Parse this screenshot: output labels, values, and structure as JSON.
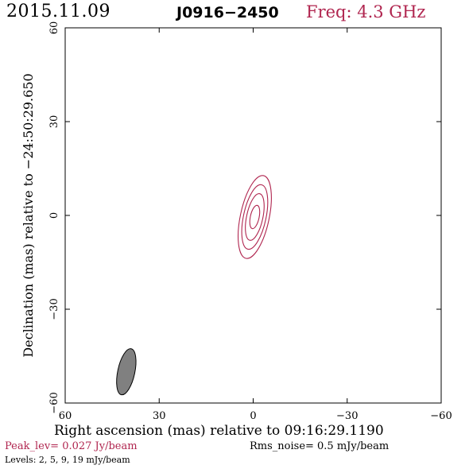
{
  "header": {
    "date": "2015.11.09",
    "source": "J0916−2450",
    "freq": "Freq: 4.3 GHz"
  },
  "footer": {
    "peak": "Peak_lev=  0.027 Jy/beam",
    "rms": "Rms_noise=   0.5 mJy/beam",
    "levels": "Levels:   2,    5,    9,   19 mJy/beam"
  },
  "colors": {
    "contour": "#b0254f",
    "beam_fill": "#808080"
  },
  "chart_data": {
    "type": "contour",
    "xlabel": "Right ascension (mas) relative to 09:16:29.1190",
    "ylabel": "Declination (mas) relative to −24:50:29.650",
    "xlim": [
      60,
      -60
    ],
    "ylim": [
      -60,
      60
    ],
    "xticks": [
      60,
      30,
      0,
      -30,
      -60
    ],
    "yticks": [
      -60,
      -30,
      0,
      30,
      60
    ],
    "xtick_labels": [
      "60",
      "30",
      "0",
      "−30",
      "−60"
    ],
    "ytick_labels": [
      "−60",
      "−30",
      "0",
      "30",
      "60"
    ],
    "contour_levels_mJy": [
      2,
      5,
      9,
      19
    ],
    "contours": [
      {
        "level": 2,
        "center": [
          -0.5,
          -0.5
        ],
        "semi_major": 13.5,
        "semi_minor": 4.6,
        "pa_deg": 12
      },
      {
        "level": 5,
        "center": [
          -0.5,
          -0.5
        ],
        "semi_major": 10.5,
        "semi_minor": 3.6,
        "pa_deg": 12
      },
      {
        "level": 9,
        "center": [
          -0.5,
          -0.5
        ],
        "semi_major": 7.6,
        "semi_minor": 2.6,
        "pa_deg": 12
      },
      {
        "level": 19,
        "center": [
          -0.5,
          -0.5
        ],
        "semi_major": 3.8,
        "semi_minor": 1.4,
        "pa_deg": 12
      }
    ],
    "beam": {
      "center": [
        40.5,
        -50.0
      ],
      "semi_major": 7.5,
      "semi_minor": 2.6,
      "pa_deg": 12
    },
    "peak_Jy_per_beam": 0.027,
    "rms_noise_mJy_per_beam": 0.5
  }
}
